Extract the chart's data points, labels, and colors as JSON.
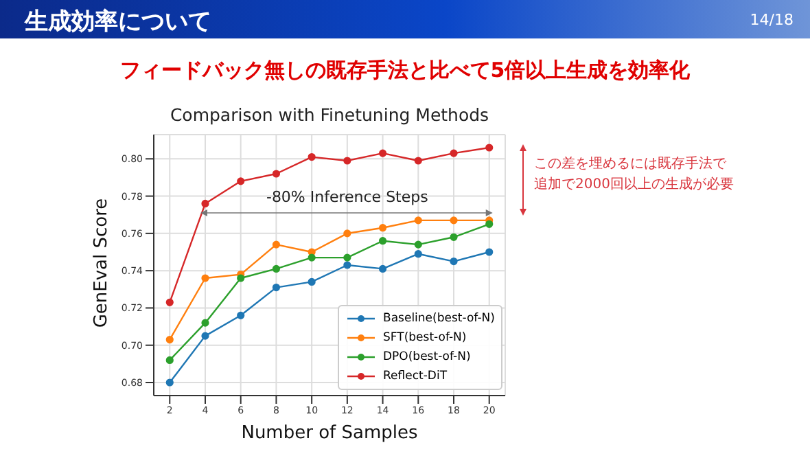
{
  "chart_data": {
    "type": "line",
    "title": "Comparison with Finetuning Methods",
    "xlabel": "Number of Samples",
    "ylabel": "GenEval Score",
    "x": [
      2,
      4,
      6,
      8,
      10,
      12,
      14,
      16,
      18,
      20
    ],
    "series": [
      {
        "name": "Baseline(best-of-N)",
        "color": "#1f77b4",
        "values": [
          0.68,
          0.705,
          0.716,
          0.731,
          0.734,
          0.743,
          0.741,
          0.749,
          0.745,
          0.75
        ]
      },
      {
        "name": "SFT(best-of-N)",
        "color": "#ff7f0e",
        "values": [
          0.703,
          0.736,
          0.738,
          0.754,
          0.75,
          0.76,
          0.763,
          0.767,
          0.767,
          0.767
        ]
      },
      {
        "name": "DPO(best-of-N)",
        "color": "#2ca02c",
        "values": [
          0.692,
          0.712,
          0.736,
          0.741,
          0.747,
          0.747,
          0.756,
          0.754,
          0.758,
          0.765
        ]
      },
      {
        "name": "Reflect-DiT",
        "color": "#d62728",
        "values": [
          0.723,
          0.776,
          0.788,
          0.792,
          0.801,
          0.799,
          0.803,
          0.799,
          0.803,
          0.806
        ]
      }
    ],
    "xlim": [
      1.1,
      20.9
    ],
    "xticks": [
      2,
      4,
      6,
      8,
      10,
      12,
      14,
      16,
      18,
      20
    ],
    "ylim": [
      0.673,
      0.813
    ],
    "yticks": [
      {
        "value": 0.68,
        "label": "0.68"
      },
      {
        "value": 0.7,
        "label": "0.70"
      },
      {
        "value": 0.72,
        "label": "0.72"
      },
      {
        "value": 0.74,
        "label": "0.74"
      },
      {
        "value": 0.76,
        "label": "0.76"
      },
      {
        "value": 0.78,
        "label": "0.78"
      },
      {
        "value": 0.8,
        "label": "0.80"
      }
    ],
    "grid": true,
    "legend": "bottom right",
    "marker": "circle",
    "line_style": "solid",
    "annotations": [
      "生成効率について",
      "14/18",
      "フィードバック無しの既存手法と比べて5倍以上生成を効率化",
      "-80% Inference Steps",
      "この差を埋めるには既存手法で",
      "追加で2000回以上の生成が必要"
    ]
  }
}
